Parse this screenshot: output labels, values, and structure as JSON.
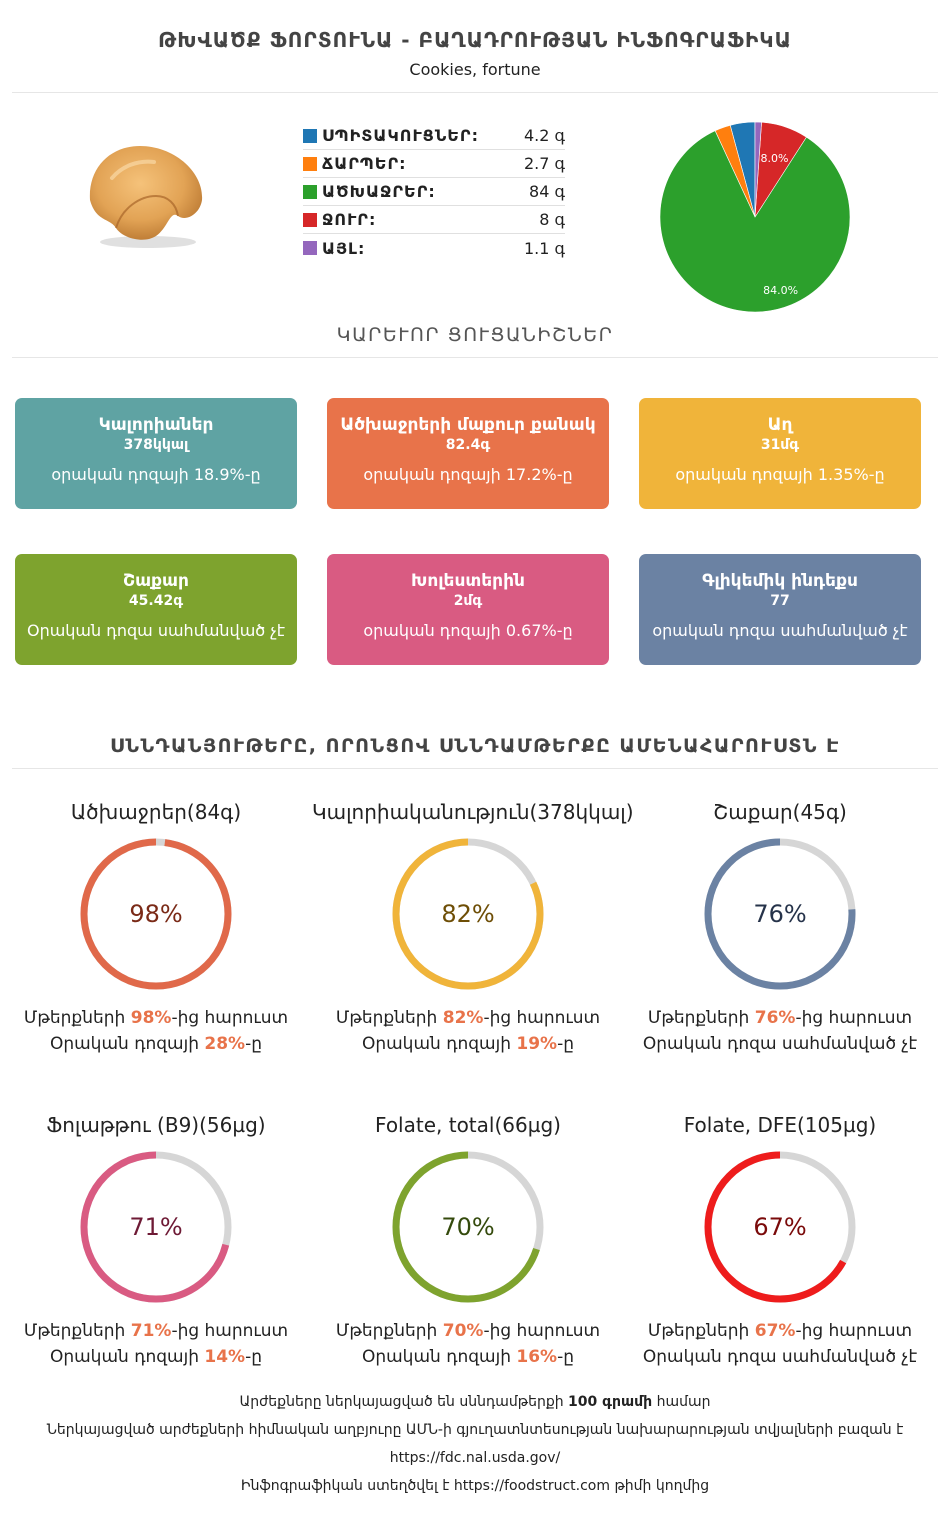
{
  "header": {
    "title": "ԹԽՎԱԾՔ ՖՈՐՏՈՒՆԱ - ԲԱՂԱԴՐՈՒԹՅԱՆ ԻՆՖՈԳՐԱՖԻԿԱ",
    "subtitle": "Cookies, fortune"
  },
  "macros": {
    "items": [
      {
        "name": "ՍՊԻՏԱԿՈՒՑՆԵՐ:",
        "value": "4.2 գ",
        "color": "#1f77b4"
      },
      {
        "name": "ՃԱՐՊԵՐ:",
        "value": "2.7 գ",
        "color": "#ff7f0e"
      },
      {
        "name": "ԱԾԽԱՋՐԵՐ:",
        "value": "84 գ",
        "color": "#2ca02c"
      },
      {
        "name": "ՋՈՒՐ:",
        "value": "8 գ",
        "color": "#d62728"
      },
      {
        "name": "ԱՅԼ:",
        "value": "1.1 գ",
        "color": "#9467bd"
      }
    ]
  },
  "chart_data": {
    "type": "pie",
    "categories": [
      "ՍՊԻՏԱԿՈՒՑՆԵՐ",
      "ՃԱՐՊԵՐ",
      "ԱԾԽԱՋՐԵՐ",
      "ՋՈՒՐ",
      "ԱՅԼ"
    ],
    "values": [
      4.2,
      2.7,
      84,
      8,
      1.1
    ],
    "colors": [
      "#1f77b4",
      "#ff7f0e",
      "#2ca02c",
      "#d62728",
      "#9467bd"
    ],
    "labels": [
      "",
      "",
      "84.0%",
      "8.0%",
      ""
    ],
    "title": ""
  },
  "key_indicators": {
    "title": "ԿԱՐԵՒՈՐ ՑՈՒՑԱՆԻՇՆԵՐ",
    "cards": [
      {
        "name": "Կալորիաներ",
        "value": "378կկալ",
        "pct": "օրական դոզայի 18.9%-ը",
        "color": "#5fa3a3"
      },
      {
        "name": "Ածխաջրերի մաքուր քանակ",
        "value": "82.4գ",
        "pct": "օրական դոզայի 17.2%-ը",
        "color": "#e8734a"
      },
      {
        "name": "Աղ",
        "value": "31մգ",
        "pct": "օրական դոզայի 1.35%-ը",
        "color": "#f0b43a"
      },
      {
        "name": "Շաքար",
        "value": "45.42գ",
        "pct": "Օրական դոզա սահմանված չէ",
        "color": "#7ea32e"
      },
      {
        "name": "Խոլեստերին",
        "value": "2մգ",
        "pct": "օրական դոզայի 0.67%-ը",
        "color": "#d95b82"
      },
      {
        "name": "Գլիկեմիկ ինդեքս",
        "value": "77",
        "pct": "օրական դոզա սահմանված չէ",
        "color": "#6b82a3"
      }
    ]
  },
  "rich": {
    "title": "ՍՆՆԴԱՆՅՈՒԹԵՐԸ, ՈՐՈՆՑՈՎ ՍՆՆԴԱՄԹԵՐՔԸ ԱՄԵՆԱՀԱՐՈՒՍՏՆ Է",
    "items": [
      {
        "name": "Ածխաջրեր(84գ)",
        "pct": "98%",
        "ratio": 0.98,
        "color": "#e0694a",
        "text_color": "#7a2a17",
        "line1_pre": "Մթերքների ",
        "line1_val": "98%",
        "line1_post": "-ից հարուստ",
        "line2_pre": "Օրական դոզայի ",
        "line2_val": "28%",
        "line2_post": "-ը"
      },
      {
        "name": "Կալորիականություն(378կկալ)",
        "pct": "82%",
        "ratio": 0.82,
        "color": "#f0b43a",
        "text_color": "#6e4e06",
        "line1_pre": "Մթերքների ",
        "line1_val": "82%",
        "line1_post": "-ից հարուստ",
        "line2_pre": "Օրական դոզայի ",
        "line2_val": "19%",
        "line2_post": "-ը"
      },
      {
        "name": "Շաքար(45գ)",
        "pct": "76%",
        "ratio": 0.76,
        "color": "#6b82a3",
        "text_color": "#26334a",
        "line1_pre": "Մթերքների ",
        "line1_val": "76%",
        "line1_post": "-ից հարուստ",
        "line2_pre": "Օրական դոզա սահմանված չէ",
        "line2_val": "",
        "line2_post": ""
      },
      {
        "name": "Ֆոլաթթու (B9)(56µg)",
        "pct": "71%",
        "ratio": 0.71,
        "color": "#d95b82",
        "text_color": "#6e1a35",
        "line1_pre": "Մթերքների ",
        "line1_val": "71%",
        "line1_post": "-ից հարուստ",
        "line2_pre": "Օրական դոզայի ",
        "line2_val": "14%",
        "line2_post": "-ը"
      },
      {
        "name": "Folate, total(66µg)",
        "pct": "70%",
        "ratio": 0.7,
        "color": "#7ea32e",
        "text_color": "#344a0c",
        "line1_pre": "Մթերքների ",
        "line1_val": "70%",
        "line1_post": "-ից հարուստ",
        "line2_pre": "Օրական դոզայի ",
        "line2_val": "16%",
        "line2_post": "-ը"
      },
      {
        "name": "Folate, DFE(105µg)",
        "pct": "67%",
        "ratio": 0.67,
        "color": "#ee1c1c",
        "text_color": "#7a0a0a",
        "line1_pre": "Մթերքների ",
        "line1_val": "67%",
        "line1_post": "-ից հարուստ",
        "line2_pre": "Օրական դոզա սահմանված չէ",
        "line2_val": "",
        "line2_post": ""
      }
    ]
  },
  "footer": {
    "line1_pre": "Արժեքները ներկայացված են սննդամթերքի ",
    "line1_bold": "100 գրամի",
    "line1_post": " համար",
    "line2": "Ներկայացված արժեքների հիմնական աղբյուրը ԱՄՆ-ի գյուղատնտեսության նախարարության տվյալների բազան է",
    "line3": "https://fdc.nal.usda.gov/",
    "line4_pre": "Ինֆոգրաֆիկան ստեղծվել է ",
    "line4_link": "https://foodstruct.com",
    "line4_post": " թիմի կողմից"
  }
}
